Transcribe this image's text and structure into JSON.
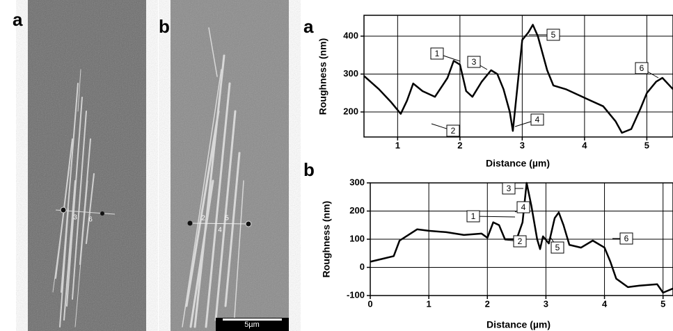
{
  "micrographs": [
    {
      "label": "a",
      "marks": [
        "3",
        "6"
      ]
    },
    {
      "label": "b",
      "marks": [
        "2",
        "5",
        "4"
      ],
      "scale_bar": "5µm"
    }
  ],
  "chart_data": [
    {
      "type": "line",
      "panel_label": "a",
      "x_label": "Distance (µm)",
      "y_label": "Roughness (nm)",
      "xlim": [
        0.46,
        5.42
      ],
      "ylim": [
        134,
        455
      ],
      "xticks": [
        1,
        2,
        3,
        4,
        5
      ],
      "yticks": [
        200,
        300,
        400
      ],
      "grid": true,
      "annotations": [
        "1",
        "2",
        "3",
        "4",
        "5",
        "6"
      ],
      "series": [
        {
          "color": "#000000",
          "x": [
            0.46,
            0.7,
            0.9,
            1.05,
            1.15,
            1.25,
            1.4,
            1.6,
            1.8,
            1.9,
            2.0,
            2.1,
            2.2,
            2.35,
            2.5,
            2.6,
            2.7,
            2.8,
            2.85,
            2.95,
            3.0,
            3.1,
            3.17,
            3.25,
            3.4,
            3.5,
            3.7,
            3.9,
            4.1,
            4.3,
            4.5,
            4.6,
            4.75,
            4.9,
            5.0,
            5.15,
            5.25,
            5.42
          ],
          "values": [
            295,
            260,
            225,
            195,
            230,
            275,
            255,
            240,
            290,
            335,
            325,
            255,
            240,
            280,
            310,
            300,
            260,
            200,
            150,
            310,
            390,
            410,
            430,
            400,
            310,
            270,
            260,
            245,
            230,
            215,
            175,
            145,
            155,
            210,
            250,
            280,
            290,
            260
          ]
        }
      ]
    },
    {
      "type": "line",
      "panel_label": "b",
      "x_label": "Distance (µm)",
      "y_label": "Roughness (nm)",
      "xlim": [
        0,
        5.17
      ],
      "ylim": [
        -100,
        300
      ],
      "xticks": [
        0,
        1,
        2,
        3,
        4,
        5
      ],
      "yticks": [
        -100,
        0,
        100,
        200,
        300
      ],
      "grid": true,
      "annotations": [
        "1",
        "2",
        "3",
        "4",
        "5",
        "6"
      ],
      "series": [
        {
          "color": "#000000",
          "x": [
            0,
            0.2,
            0.4,
            0.5,
            0.65,
            0.8,
            1.0,
            1.3,
            1.6,
            1.9,
            2.0,
            2.1,
            2.2,
            2.3,
            2.5,
            2.6,
            2.67,
            2.75,
            2.85,
            2.9,
            2.95,
            3.05,
            3.15,
            3.22,
            3.3,
            3.4,
            3.6,
            3.8,
            4.0,
            4.1,
            4.2,
            4.4,
            4.6,
            4.9,
            5.0,
            5.17
          ],
          "values": [
            20,
            30,
            40,
            95,
            115,
            135,
            130,
            125,
            115,
            120,
            105,
            160,
            150,
            100,
            100,
            160,
            300,
            220,
            100,
            65,
            110,
            85,
            175,
            195,
            150,
            80,
            70,
            95,
            70,
            20,
            -40,
            -70,
            -65,
            -60,
            -90,
            -75
          ]
        }
      ]
    }
  ]
}
